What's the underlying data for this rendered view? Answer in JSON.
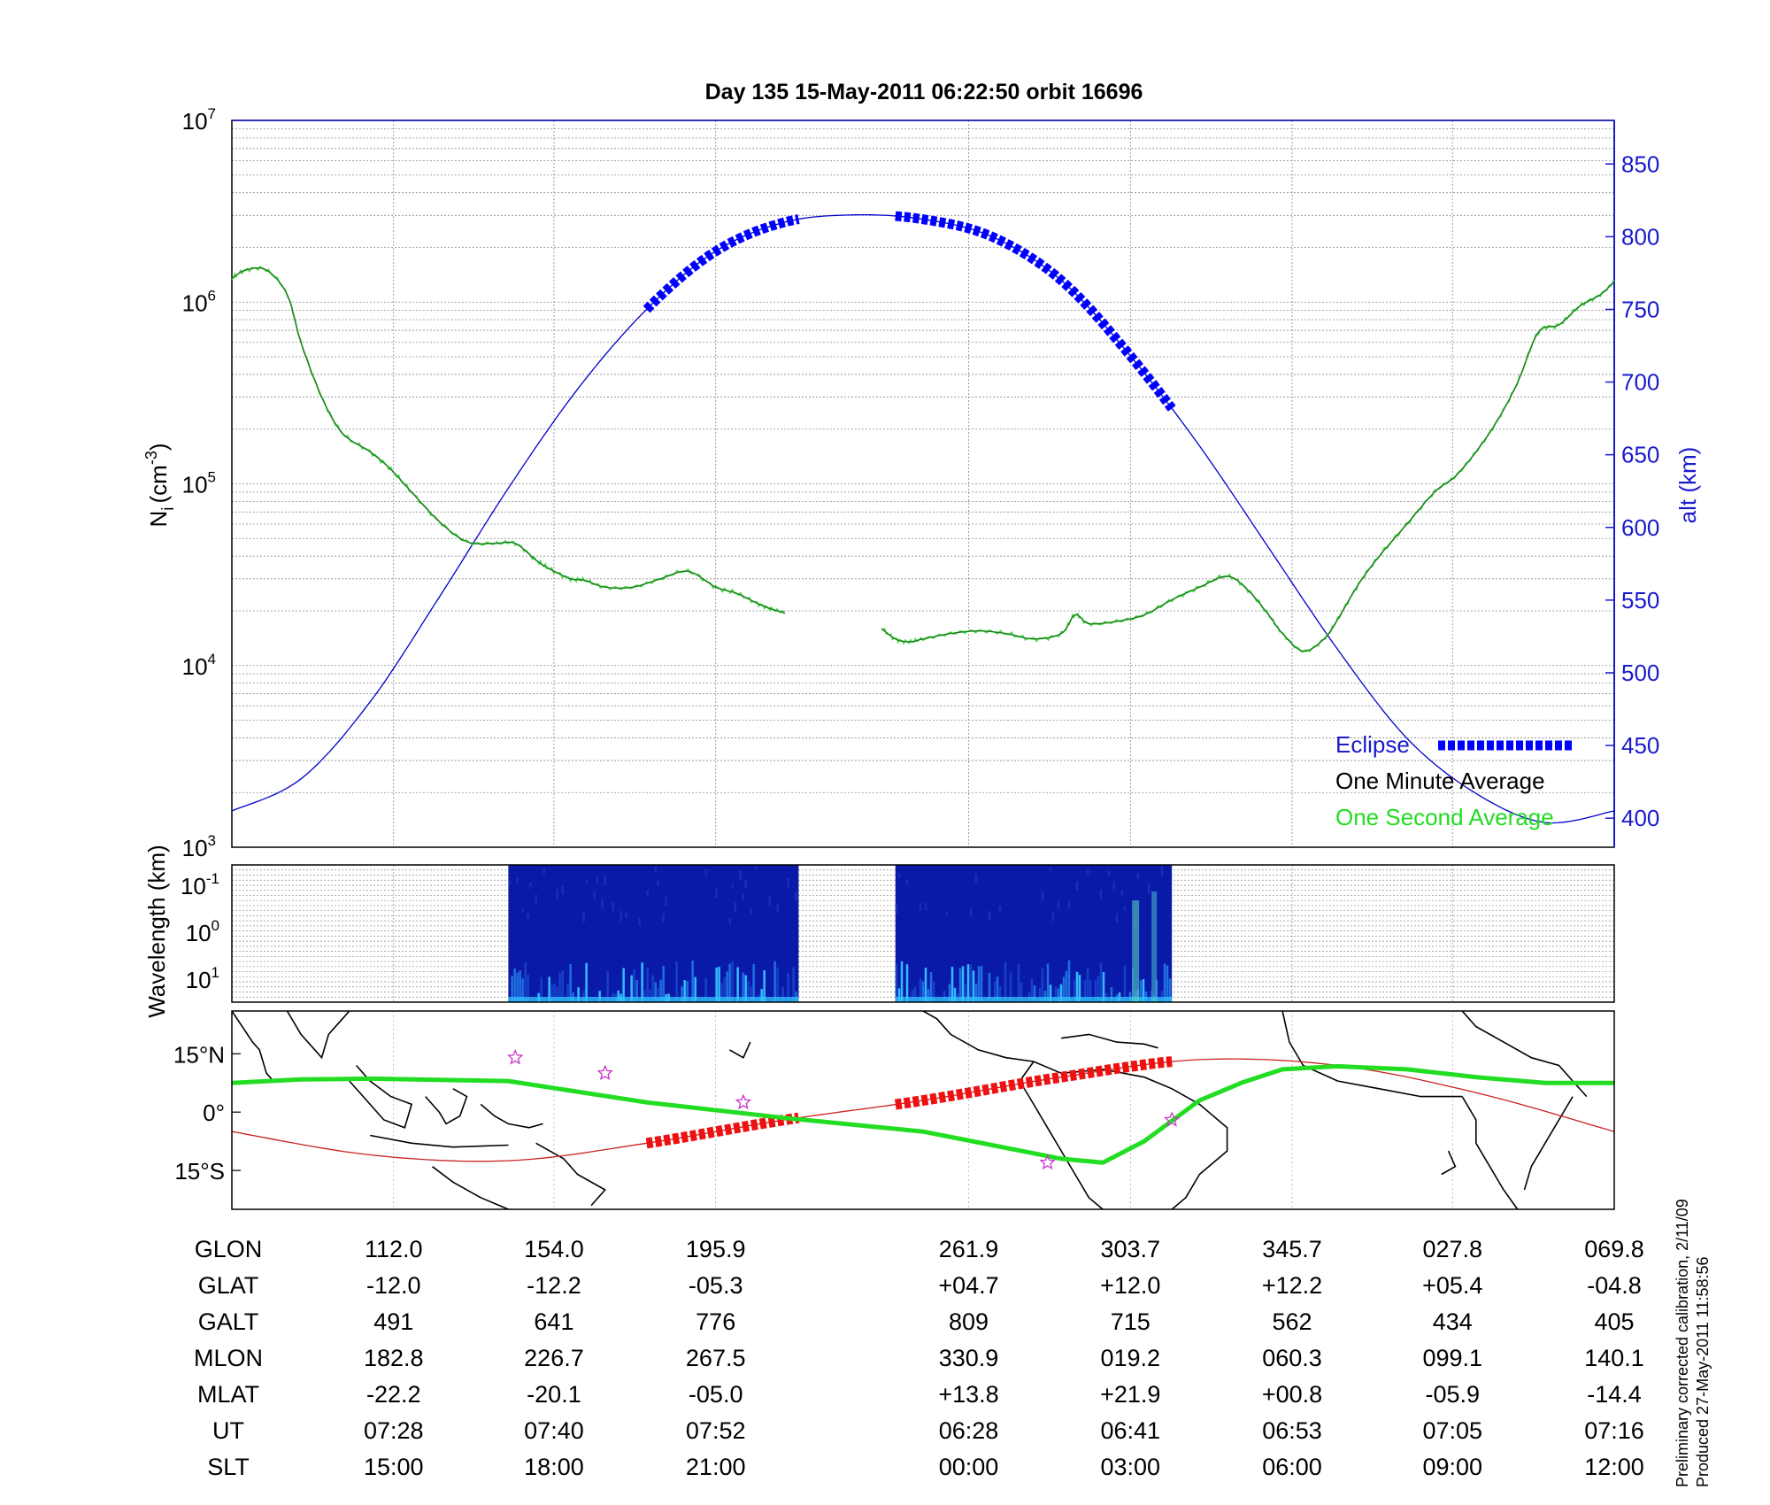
{
  "chart_data": [
    {
      "type": "line",
      "title": "Day 135  15-May-2011 06:22:50   orbit 16696",
      "ylabel_left": "N",
      "ylabel_left_sub": "i",
      "ylabel_left_unit": "(cm",
      "ylabel_left_unit_sup": "-3",
      "ylabel_left_close": ")",
      "ylabel_right": "alt (km)",
      "left_axis": {
        "scale": "log",
        "ylim": [
          1000,
          10000000
        ],
        "ticks": [
          "10",
          "10",
          "10",
          "10",
          "10"
        ],
        "exponents": [
          "3",
          "4",
          "5",
          "6",
          "7"
        ]
      },
      "right_axis": {
        "ylim": [
          380,
          880
        ],
        "ticks": [
          "400",
          "450",
          "500",
          "550",
          "600",
          "650",
          "700",
          "750",
          "800",
          "850"
        ]
      },
      "grid": true,
      "legend": {
        "position": "bottom-right",
        "items": [
          {
            "label": "Eclipse",
            "color": "#1a1aff"
          },
          {
            "label": "One Minute Average",
            "color": "#000000"
          },
          {
            "label": "One Second Average",
            "color": "#22dd22"
          }
        ]
      },
      "colors": {
        "density": "#1e7a1e",
        "density_1s": "#44dd44",
        "altitude": "#0000cc",
        "eclipse": "#0000ff"
      },
      "series": [
        {
          "name": "One Minute Average",
          "y_axis": "left",
          "segments": [
            {
              "x": [
                0,
                0.01,
                0.025,
                0.04,
                0.05,
                0.065,
                0.08,
                0.1,
                0.115,
                0.13,
                0.15,
                0.17,
                0.19,
                0.205,
                0.22,
                0.23,
                0.245,
                0.255,
                0.27,
                0.29,
                0.31,
                0.33,
                0.35,
                0.365,
                0.38,
                0.39,
                0.4
              ],
              "y": [
                1350000,
                1500000,
                1500000,
                1100000,
                600000,
                300000,
                190000,
                150000,
                120000,
                90000,
                62000,
                48000,
                47000,
                47000,
                38000,
                34000,
                30000,
                29500,
                27000,
                27000,
                30000,
                33000,
                27000,
                25000,
                22000,
                20500,
                19500
              ]
            },
            {
              "x": [
                0.47,
                0.48,
                0.49,
                0.5,
                0.52,
                0.54,
                0.56,
                0.58,
                0.6,
                0.61,
                0.62,
                0.64,
                0.66,
                0.68,
                0.7,
                0.72,
                0.735,
                0.75,
                0.76,
                0.775,
                0.79,
                0.8,
                0.815,
                0.83,
                0.85,
                0.87,
                0.885,
                0.9,
                0.915,
                0.93,
                0.945,
                0.96,
                0.975,
                0.99,
                1.0
              ],
              "y": [
                16000,
                14000,
                13500,
                14000,
                15000,
                15500,
                15000,
                14000,
                15000,
                19000,
                17000,
                17500,
                19000,
                23000,
                27000,
                31000,
                26000,
                19000,
                15000,
                12000,
                14000,
                18000,
                28000,
                40000,
                60000,
                90000,
                110000,
                150000,
                220000,
                360000,
                680000,
                750000,
                950000,
                1100000,
                1300000
              ]
            }
          ]
        },
        {
          "name": "alt (km)",
          "y_axis": "right",
          "x": [
            0,
            0.05,
            0.1,
            0.15,
            0.2,
            0.25,
            0.3,
            0.35,
            0.4,
            0.45,
            0.5,
            0.55,
            0.6,
            0.65,
            0.7,
            0.75,
            0.8,
            0.85,
            0.9,
            0.95,
            1.0
          ],
          "y": [
            405,
            427,
            480,
            552,
            627,
            695,
            750,
            790,
            810,
            815,
            812,
            800,
            770,
            718,
            656,
            586,
            516,
            455,
            417,
            397,
            405
          ]
        },
        {
          "name": "Eclipse",
          "y_axis": "right",
          "segments": [
            {
              "x_range": [
                0.3,
                0.41
              ]
            },
            {
              "x_range": [
                0.48,
                0.68
              ]
            }
          ]
        }
      ]
    },
    {
      "type": "heatmap",
      "ylabel": "Wavelength (km)",
      "y_ticks": [
        "10",
        "10",
        "10"
      ],
      "y_tick_exponents": [
        "-1",
        "0",
        "1"
      ],
      "scale": "log",
      "blocks": [
        {
          "x_range": [
            0.2,
            0.41
          ]
        },
        {
          "x_range": [
            0.48,
            0.68
          ]
        }
      ]
    },
    {
      "type": "map",
      "y_ticks": [
        "15°N",
        "0°",
        "15°S"
      ],
      "ylim": [
        -25,
        26
      ],
      "tracks": [
        {
          "name": "orbit track",
          "color": "#cc2222",
          "x": [
            0,
            0.1,
            0.2,
            0.3,
            0.4,
            0.5,
            0.6,
            0.7,
            0.8,
            0.9,
            1.0
          ],
          "lat": [
            -5,
            -11,
            -12.5,
            -8,
            -2,
            3,
            9,
            13.5,
            12,
            5,
            -5
          ]
        },
        {
          "name": "eclipse track",
          "color": "#ee1111",
          "segments": [
            {
              "x_range": [
                0.3,
                0.41
              ]
            },
            {
              "x_range": [
                0.48,
                0.68
              ]
            }
          ]
        },
        {
          "name": "magnetic equator",
          "color": "#22dd22",
          "x": [
            0,
            0.05,
            0.1,
            0.2,
            0.3,
            0.4,
            0.5,
            0.55,
            0.6,
            0.63,
            0.66,
            0.7,
            0.73,
            0.76,
            0.8,
            0.85,
            0.9,
            0.95,
            1.0
          ],
          "lat": [
            7.5,
            8.4,
            8.6,
            8.0,
            2.5,
            -1.5,
            -5,
            -8.5,
            -12,
            -13,
            -7.5,
            3,
            7.5,
            11,
            11.8,
            11,
            9,
            7.5,
            7.5
          ]
        }
      ],
      "markers_x": [
        0.205,
        0.27,
        0.37,
        0.59,
        0.68
      ],
      "markers_lat": [
        14,
        10,
        2.5,
        -13,
        -2
      ]
    },
    {
      "type": "table",
      "x": [
        0.117,
        0.233,
        0.35,
        0.533,
        0.65,
        0.767,
        0.883,
        1.0
      ],
      "rows": [
        {
          "label": "GLON",
          "values": [
            "112.0",
            "154.0",
            "195.9",
            "261.9",
            "303.7",
            "345.7",
            "027.8",
            "069.8"
          ]
        },
        {
          "label": "GLAT",
          "values": [
            "-12.0",
            "-12.2",
            "-05.3",
            "+04.7",
            "+12.0",
            "+12.2",
            "+05.4",
            "-04.8"
          ]
        },
        {
          "label": "GALT",
          "values": [
            "491",
            "641",
            "776",
            "809",
            "715",
            "562",
            "434",
            "405"
          ]
        },
        {
          "label": "MLON",
          "values": [
            "182.8",
            "226.7",
            "267.5",
            "330.9",
            "019.2",
            "060.3",
            "099.1",
            "140.1"
          ]
        },
        {
          "label": "MLAT",
          "values": [
            "-22.2",
            "-20.1",
            "-05.0",
            "+13.8",
            "+21.9",
            "+00.8",
            "-05.9",
            "-14.4"
          ]
        },
        {
          "label": "UT",
          "values": [
            "07:28",
            "07:40",
            "07:52",
            "06:28",
            "06:41",
            "06:53",
            "07:05",
            "07:16"
          ]
        },
        {
          "label": "SLT",
          "values": [
            "15:00",
            "18:00",
            "21:00",
            "00:00",
            "03:00",
            "06:00",
            "09:00",
            "12:00"
          ]
        }
      ]
    }
  ],
  "footer": {
    "line1": "Preliminary corrected calibration, 2/11/09",
    "line2": "Produced 27-May-2011 11:58:56"
  }
}
